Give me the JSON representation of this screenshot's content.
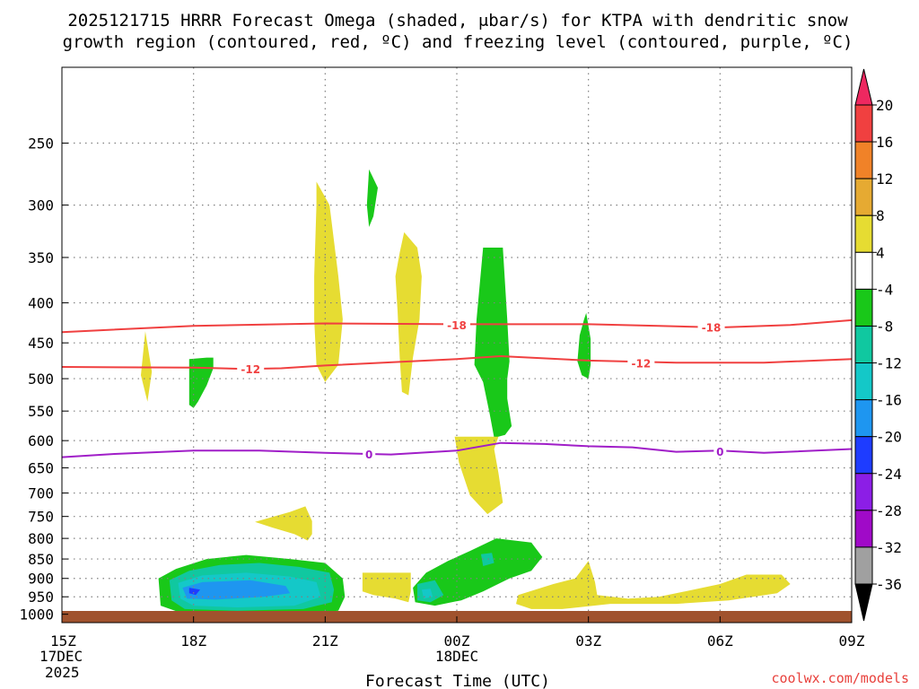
{
  "colors": {
    "yellow": "#e6dc32",
    "green": "#19c819",
    "teal": "#10c8a0",
    "cyan": "#14c8c8",
    "blue": "#1e96f0",
    "navy": "#1e3cff",
    "red_contour": "#f04040",
    "purple_contour": "#a01ec8",
    "ground": "#a0522d"
  },
  "chart_data": {
    "type": "cross-section",
    "title_line1": "2025121715 HRRR Forecast Omega (shaded, μbar/s) for KTPA with dendritic snow",
    "title_line2": "growth region (contoured, red, ºC) and freezing level (contoured, purple, ºC)",
    "xlabel": "Forecast Time (UTC)",
    "credit": "coolwx.com/models",
    "x_range_hours": [
      0,
      18
    ],
    "y_range_hPa": [
      1025,
      200
    ],
    "y_ticks": [
      250,
      300,
      350,
      400,
      450,
      500,
      550,
      600,
      650,
      700,
      750,
      800,
      850,
      900,
      950,
      1000
    ],
    "x_ticks": [
      {
        "h": 0,
        "label": "15Z",
        "sub1": "17DEC",
        "sub2": "2025"
      },
      {
        "h": 3,
        "label": "18Z",
        "sub1": "",
        "sub2": ""
      },
      {
        "h": 6,
        "label": "21Z",
        "sub1": "",
        "sub2": ""
      },
      {
        "h": 9,
        "label": "00Z",
        "sub1": "18DEC",
        "sub2": ""
      },
      {
        "h": 12,
        "label": "03Z",
        "sub1": "",
        "sub2": ""
      },
      {
        "h": 15,
        "label": "06Z",
        "sub1": "",
        "sub2": ""
      },
      {
        "h": 18,
        "label": "09Z",
        "sub1": "",
        "sub2": ""
      }
    ],
    "colorbar": {
      "labels": [
        "20",
        "16",
        "12",
        "8",
        "4",
        "-4",
        "-8",
        "-12",
        "-16",
        "-20",
        "-24",
        "-28",
        "-32",
        "-36"
      ],
      "colors": [
        "#ee2860",
        "#f04040",
        "#f08228",
        "#e6aa32",
        "#e6dc32",
        "#ffffff",
        "#19c819",
        "#10c8a0",
        "#14c8c8",
        "#1e96f0",
        "#1e3cff",
        "#8c1ee6",
        "#a00ac8",
        "#a0a0a0",
        "#000000"
      ]
    },
    "contours": [
      {
        "name": "dgz-minus18",
        "value": -18,
        "label": "-18",
        "color": "red",
        "points": [
          [
            0,
            436
          ],
          [
            3,
            428
          ],
          [
            6,
            425
          ],
          [
            9,
            426
          ],
          [
            12,
            426
          ],
          [
            13.6,
            428
          ],
          [
            15,
            430
          ],
          [
            16.6,
            427
          ],
          [
            18,
            421
          ]
        ],
        "label_at": [
          [
            9,
            427
          ],
          [
            14.8,
            430
          ]
        ]
      },
      {
        "name": "dgz-minus12",
        "value": -12,
        "label": "-12",
        "color": "red",
        "points": [
          [
            0,
            483
          ],
          [
            3,
            484
          ],
          [
            4.2,
            486
          ],
          [
            5,
            485
          ],
          [
            6,
            481
          ],
          [
            9,
            472
          ],
          [
            10,
            468
          ],
          [
            12,
            474
          ],
          [
            14,
            477
          ],
          [
            16,
            477
          ],
          [
            18,
            472
          ]
        ],
        "label_at": [
          [
            4.3,
            486
          ],
          [
            13.2,
            478
          ]
        ]
      },
      {
        "name": "freezing-level",
        "value": 0,
        "label": "0",
        "color": "purple",
        "points": [
          [
            0,
            630
          ],
          [
            1.2,
            624
          ],
          [
            3,
            618
          ],
          [
            4.5,
            618
          ],
          [
            6,
            622
          ],
          [
            7.5,
            625
          ],
          [
            9,
            618
          ],
          [
            10,
            604
          ],
          [
            11,
            606
          ],
          [
            12,
            610
          ],
          [
            13,
            612
          ],
          [
            14,
            620
          ],
          [
            15,
            618
          ],
          [
            16,
            622
          ],
          [
            18,
            615
          ]
        ],
        "label_at": [
          [
            7,
            625
          ],
          [
            15,
            620
          ]
        ]
      }
    ],
    "omega_regions": [
      {
        "name": "rise-0",
        "color": "yellow",
        "points": [
          [
            1.9,
            435
          ],
          [
            2.05,
            490
          ],
          [
            1.95,
            535
          ],
          [
            1.8,
            495
          ]
        ]
      },
      {
        "name": "rise-1",
        "color": "green",
        "points": [
          [
            2.9,
            472
          ],
          [
            3.3,
            470
          ],
          [
            3.45,
            470
          ],
          [
            3.45,
            485
          ],
          [
            3.3,
            510
          ],
          [
            3.1,
            535
          ],
          [
            3.0,
            545
          ],
          [
            2.9,
            540
          ],
          [
            2.9,
            495
          ]
        ]
      },
      {
        "name": "rise-2",
        "color": "yellow",
        "points": [
          [
            5.8,
            280
          ],
          [
            6.1,
            300
          ],
          [
            6.3,
            370
          ],
          [
            6.4,
            420
          ],
          [
            6.3,
            480
          ],
          [
            6.0,
            505
          ],
          [
            5.8,
            480
          ],
          [
            5.75,
            420
          ],
          [
            5.75,
            370
          ],
          [
            5.8,
            300
          ]
        ]
      },
      {
        "name": "rise-3",
        "color": "green",
        "points": [
          [
            7.0,
            270
          ],
          [
            7.2,
            285
          ],
          [
            7.1,
            310
          ],
          [
            7.0,
            320
          ],
          [
            6.95,
            300
          ]
        ]
      },
      {
        "name": "rise-4",
        "color": "yellow",
        "points": [
          [
            7.8,
            325
          ],
          [
            8.1,
            340
          ],
          [
            8.2,
            370
          ],
          [
            8.15,
            420
          ],
          [
            8.0,
            470
          ],
          [
            7.9,
            525
          ],
          [
            7.75,
            520
          ],
          [
            7.7,
            470
          ],
          [
            7.65,
            410
          ],
          [
            7.6,
            370
          ],
          [
            7.7,
            345
          ]
        ]
      },
      {
        "name": "rise-5",
        "color": "green",
        "points": [
          [
            9.6,
            340
          ],
          [
            10.05,
            340
          ],
          [
            10.15,
            420
          ],
          [
            10.2,
            475
          ],
          [
            10.15,
            500
          ],
          [
            10.15,
            530
          ],
          [
            10.25,
            575
          ],
          [
            10.1,
            590
          ],
          [
            9.85,
            595
          ],
          [
            9.75,
            555
          ],
          [
            9.6,
            505
          ],
          [
            9.4,
            480
          ],
          [
            9.45,
            420
          ]
        ]
      },
      {
        "name": "rise-6",
        "color": "green",
        "points": [
          [
            11.95,
            412
          ],
          [
            12.05,
            445
          ],
          [
            12.05,
            480
          ],
          [
            12.0,
            500
          ],
          [
            11.85,
            495
          ],
          [
            11.75,
            475
          ],
          [
            11.8,
            440
          ],
          [
            11.9,
            420
          ]
        ]
      },
      {
        "name": "rise-7",
        "color": "yellow",
        "points": [
          [
            8.95,
            593
          ],
          [
            9.95,
            593
          ],
          [
            9.85,
            615
          ],
          [
            9.95,
            660
          ],
          [
            10.05,
            720
          ],
          [
            9.7,
            745
          ],
          [
            9.3,
            705
          ],
          [
            9.05,
            640
          ]
        ]
      },
      {
        "name": "rise-8",
        "color": "yellow",
        "points": [
          [
            4.4,
            762
          ],
          [
            5.2,
            740
          ],
          [
            5.55,
            728
          ],
          [
            5.7,
            760
          ],
          [
            5.7,
            790
          ],
          [
            5.6,
            805
          ],
          [
            5.3,
            790
          ],
          [
            4.8,
            775
          ]
        ]
      },
      {
        "name": "rise-9",
        "color": "yellow",
        "points": [
          [
            6.85,
            885
          ],
          [
            7.95,
            885
          ],
          [
            7.95,
            935
          ],
          [
            7.9,
            965
          ],
          [
            7.6,
            955
          ],
          [
            7.1,
            945
          ],
          [
            6.85,
            935
          ]
        ]
      },
      {
        "name": "rise-10",
        "color": "yellow",
        "points": [
          [
            10.4,
            945
          ],
          [
            11.2,
            915
          ],
          [
            11.7,
            900
          ],
          [
            12.0,
            855
          ],
          [
            12.15,
            910
          ],
          [
            12.2,
            945
          ],
          [
            12.9,
            955
          ],
          [
            13.6,
            950
          ],
          [
            14.2,
            935
          ],
          [
            15.0,
            915
          ],
          [
            15.6,
            890
          ],
          [
            16.4,
            890
          ],
          [
            16.6,
            915
          ],
          [
            16.3,
            940
          ],
          [
            15.2,
            960
          ],
          [
            14.0,
            970
          ],
          [
            12.5,
            970
          ],
          [
            11.4,
            985
          ],
          [
            10.7,
            985
          ],
          [
            10.35,
            970
          ]
        ]
      },
      {
        "name": "rise-11-outer",
        "color": "green",
        "points": [
          [
            2.2,
            900
          ],
          [
            2.6,
            875
          ],
          [
            3.3,
            850
          ],
          [
            4.2,
            840
          ],
          [
            5.2,
            850
          ],
          [
            6.0,
            860
          ],
          [
            6.4,
            900
          ],
          [
            6.45,
            950
          ],
          [
            6.3,
            990
          ],
          [
            5.5,
            1000
          ],
          [
            4.0,
            1005
          ],
          [
            2.8,
            1000
          ],
          [
            2.25,
            975
          ]
        ]
      },
      {
        "name": "rise-11-teal",
        "color": "teal",
        "points": [
          [
            2.45,
            905
          ],
          [
            2.9,
            880
          ],
          [
            3.6,
            865
          ],
          [
            4.5,
            860
          ],
          [
            5.4,
            870
          ],
          [
            6.1,
            885
          ],
          [
            6.2,
            930
          ],
          [
            6.15,
            965
          ],
          [
            5.5,
            985
          ],
          [
            4.0,
            990
          ],
          [
            2.8,
            985
          ],
          [
            2.5,
            960
          ]
        ]
      },
      {
        "name": "rise-11-cyan",
        "color": "cyan",
        "points": [
          [
            2.65,
            912
          ],
          [
            3.2,
            892
          ],
          [
            4.2,
            885
          ],
          [
            5.2,
            895
          ],
          [
            5.8,
            910
          ],
          [
            5.9,
            950
          ],
          [
            5.3,
            975
          ],
          [
            4.0,
            980
          ],
          [
            3.0,
            975
          ],
          [
            2.7,
            955
          ]
        ]
      },
      {
        "name": "rise-11-blue",
        "color": "blue",
        "points": [
          [
            2.75,
            925
          ],
          [
            3.2,
            910
          ],
          [
            4.3,
            905
          ],
          [
            5.1,
            920
          ],
          [
            5.2,
            940
          ],
          [
            4.6,
            950
          ],
          [
            3.5,
            958
          ],
          [
            2.85,
            955
          ]
        ]
      },
      {
        "name": "rise-11-core",
        "color": "navy",
        "points": [
          [
            2.9,
            925
          ],
          [
            3.15,
            930
          ],
          [
            3.05,
            945
          ],
          [
            2.9,
            940
          ]
        ]
      },
      {
        "name": "rise-12-outer",
        "color": "green",
        "points": [
          [
            8.0,
            925
          ],
          [
            8.3,
            885
          ],
          [
            8.8,
            855
          ],
          [
            9.3,
            830
          ],
          [
            9.9,
            800
          ],
          [
            10.7,
            810
          ],
          [
            10.95,
            845
          ],
          [
            10.7,
            880
          ],
          [
            10.2,
            900
          ],
          [
            9.6,
            935
          ],
          [
            9.1,
            960
          ],
          [
            8.5,
            975
          ],
          [
            8.05,
            965
          ]
        ]
      },
      {
        "name": "rise-12-teal-a",
        "color": "teal",
        "points": [
          [
            8.1,
            915
          ],
          [
            8.5,
            905
          ],
          [
            8.7,
            945
          ],
          [
            8.4,
            965
          ],
          [
            8.1,
            960
          ]
        ]
      },
      {
        "name": "rise-12-teal-b",
        "color": "teal",
        "points": [
          [
            9.55,
            838
          ],
          [
            9.8,
            835
          ],
          [
            9.85,
            860
          ],
          [
            9.6,
            868
          ]
        ]
      },
      {
        "name": "rise-12-cyan",
        "color": "cyan",
        "points": [
          [
            8.2,
            930
          ],
          [
            8.4,
            928
          ],
          [
            8.45,
            950
          ],
          [
            8.25,
            955
          ]
        ]
      }
    ]
  }
}
